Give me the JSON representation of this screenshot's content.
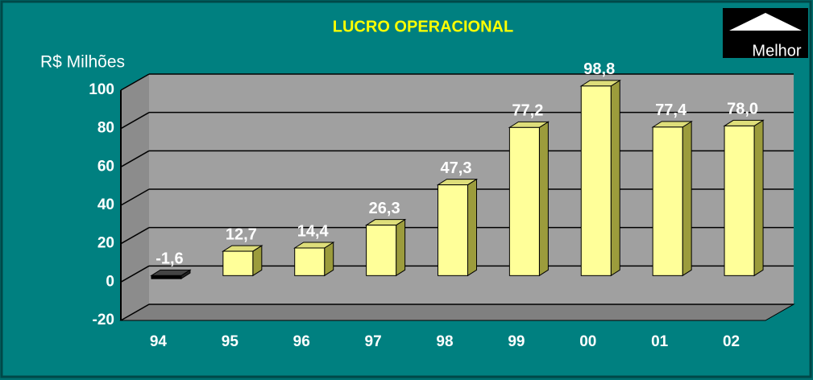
{
  "chart_data": {
    "type": "bar",
    "title": "LUCRO OPERACIONAL",
    "y_label": "R$ Milhões",
    "annotation": "Melhor",
    "categories": [
      "94",
      "95",
      "96",
      "97",
      "98",
      "99",
      "00",
      "01",
      "02"
    ],
    "values": [
      -1.6,
      12.7,
      14.4,
      26.3,
      47.3,
      77.2,
      98.8,
      77.4,
      78.0
    ],
    "value_labels": [
      "-1,6",
      "12,7",
      "14,4",
      "26,3",
      "47,3",
      "77,2",
      "98,8",
      "77,4",
      "78,0"
    ],
    "color": "#ffff99",
    "ylim": [
      -20,
      100
    ],
    "yticks": [
      -20,
      0,
      20,
      40,
      60,
      80,
      100
    ],
    "grid": true
  }
}
